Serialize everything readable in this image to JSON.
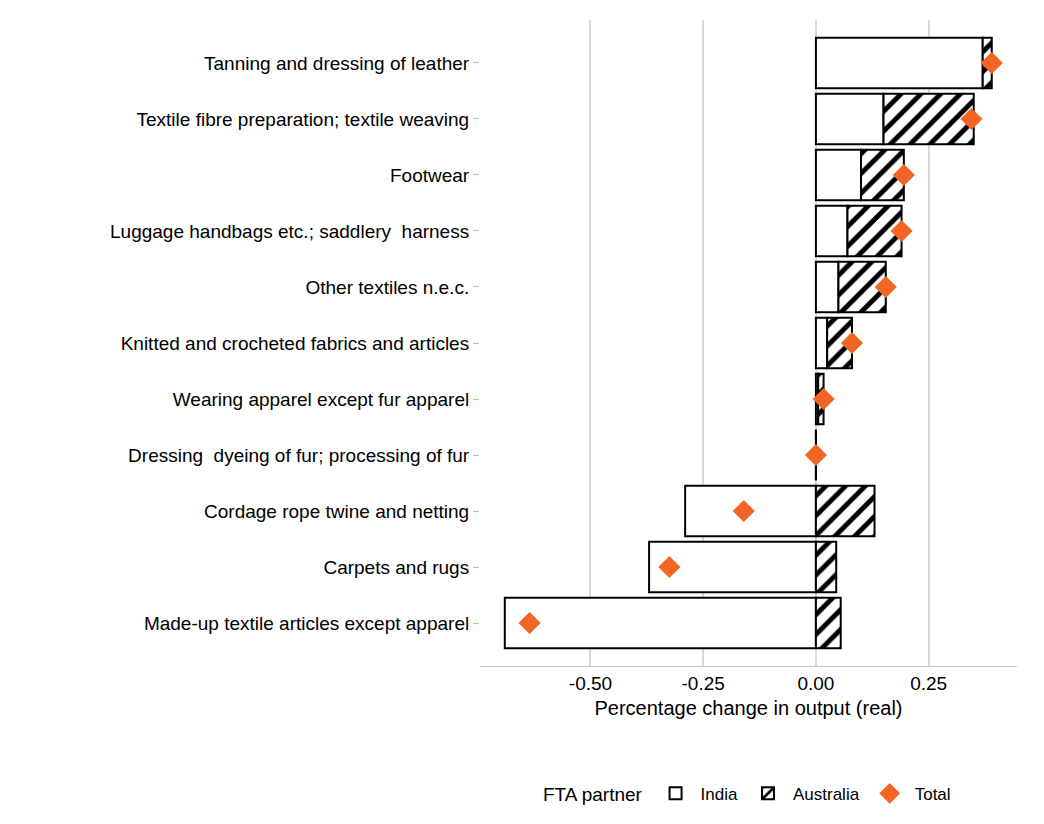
{
  "chart_data": {
    "type": "bar",
    "orientation": "horizontal",
    "stacked": true,
    "grid": true,
    "legend": "bottom",
    "legend_title": "FTA partner",
    "x_label": "Percentage change in output (real)",
    "categories": [
      "Tanning and dressing of leather",
      "Textile fibre preparation; textile weaving",
      "Footwear",
      "Luggage handbags etc.; saddlery  harness",
      "Other textiles n.e.c.",
      "Knitted and crocheted fabrics and articles",
      "Wearing apparel except fur apparel",
      "Dressing  dyeing of fur; processing of fur",
      "Cordage rope twine and netting",
      "Carpets and rugs",
      "Made-up textile articles except apparel"
    ],
    "series": [
      {
        "name": "India",
        "type": "bar",
        "color": "#ffffff",
        "values": [
          0.37,
          0.15,
          0.1,
          0.07,
          0.05,
          0.025,
          0.005,
          0.0,
          -0.29,
          -0.37,
          -0.69
        ]
      },
      {
        "name": "Australia",
        "type": "bar",
        "color": "#ffffff",
        "marker": "hatch",
        "values": [
          0.02,
          0.2,
          0.095,
          0.12,
          0.105,
          0.055,
          0.012,
          0.0,
          0.13,
          0.045,
          0.055
        ]
      },
      {
        "name": "Total",
        "type": "scatter",
        "color": "#f26522",
        "marker": "diamond",
        "values": [
          0.39,
          0.345,
          0.195,
          0.19,
          0.155,
          0.08,
          0.017,
          0.0,
          -0.16,
          -0.325,
          -0.635
        ]
      }
    ],
    "xlim": [
      -0.745,
      0.446
    ],
    "xticks": [
      {
        "value": -0.5,
        "label": "-0.50"
      },
      {
        "value": -0.25,
        "label": "-0.25"
      },
      {
        "value": 0,
        "label": "0.00"
      },
      {
        "value": 0.25,
        "label": "0.25"
      }
    ]
  }
}
